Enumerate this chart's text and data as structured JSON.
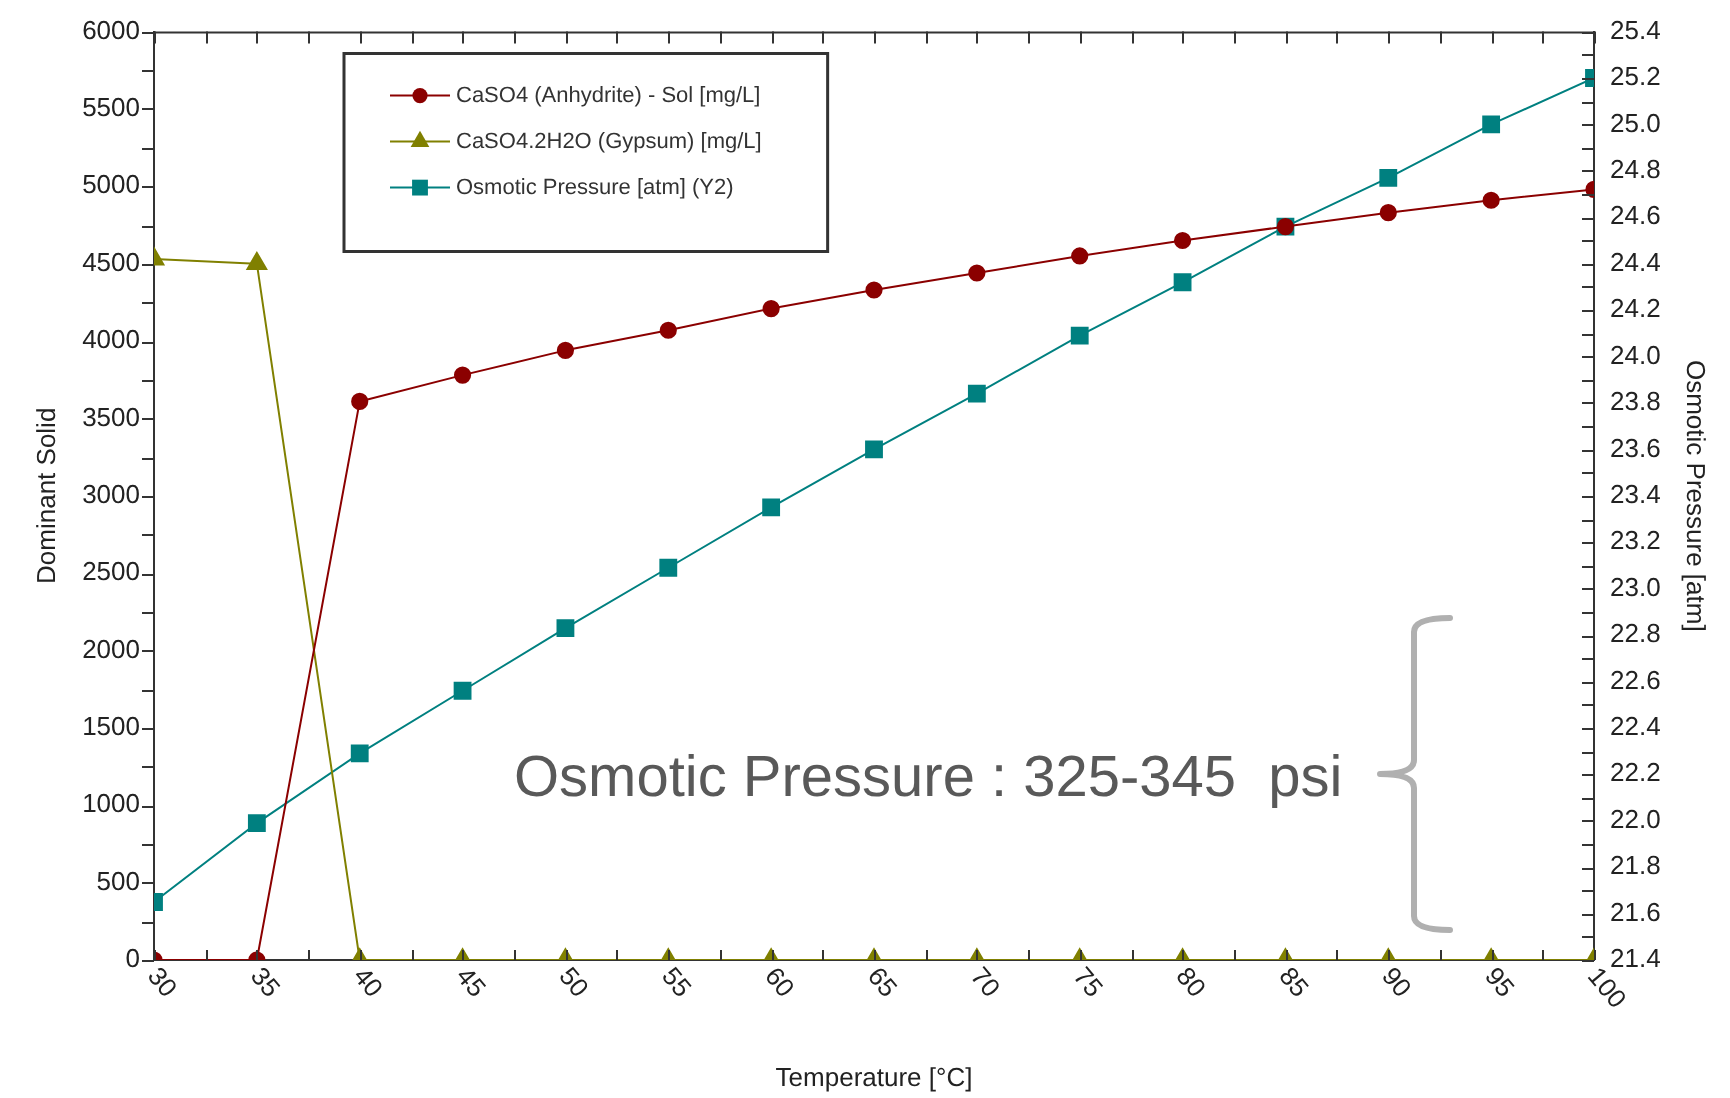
{
  "chart_data": {
    "type": "line",
    "xlabel": "Temperature [°C]",
    "ylabel": "Dominant Solid",
    "y2label": "Osmotic Pressure [atm]",
    "x": [
      30,
      35,
      40,
      45,
      50,
      55,
      60,
      65,
      70,
      75,
      80,
      85,
      90,
      95,
      100
    ],
    "series": [
      {
        "name": "CaSO4 (Anhydrite) - Sol [mg/L]",
        "color": "#8b0000",
        "marker": "circle",
        "values": [
          0,
          0,
          3610,
          3780,
          3940,
          4070,
          4210,
          4330,
          4440,
          4550,
          4650,
          4740,
          4830,
          4910,
          4980
        ]
      },
      {
        "name": "CaSO4.2H2O (Gypsum) [mg/L]",
        "color": "#808000",
        "marker": "triangle",
        "values": [
          4530,
          4500,
          0,
          0,
          0,
          0,
          0,
          0,
          0,
          0,
          0,
          0,
          0,
          0,
          0
        ]
      },
      {
        "name": "Osmotic Pressure [atm] (Y2)",
        "color": "#008080",
        "marker": "square",
        "axis": "y2",
        "values": [
          21.65,
          21.99,
          22.29,
          22.56,
          22.83,
          23.09,
          23.35,
          23.6,
          23.84,
          24.09,
          24.32,
          24.56,
          24.77,
          25.0,
          25.2
        ]
      }
    ],
    "xlim": [
      30,
      100
    ],
    "xticks": [
      30,
      {
        "value": 32.5,
        "label": null
      },
      35,
      {
        "value": 37.5,
        "label": null
      },
      40,
      {
        "value": 42.5,
        "label": null
      },
      45,
      {
        "value": 47.5,
        "label": null
      },
      50,
      {
        "value": 52.5,
        "label": null
      },
      55,
      {
        "value": 57.5,
        "label": null
      },
      60,
      {
        "value": 62.5,
        "label": null
      },
      65,
      {
        "value": 67.5,
        "label": null
      },
      70,
      {
        "value": 72.5,
        "label": null
      },
      75,
      {
        "value": 77.5,
        "label": null
      },
      80,
      {
        "value": 82.5,
        "label": null
      },
      85,
      {
        "value": 87.5,
        "label": null
      },
      90,
      {
        "value": 92.5,
        "label": null
      },
      95,
      {
        "value": 97.5,
        "label": null
      },
      100
    ],
    "ylim": [
      0,
      6000
    ],
    "yticks": [
      0,
      {
        "value": 250,
        "label": null
      },
      500,
      {
        "value": 750,
        "label": null
      },
      1000,
      {
        "value": 1250,
        "label": null
      },
      1500,
      {
        "value": 1750,
        "label": null
      },
      2000,
      {
        "value": 2250,
        "label": null
      },
      2500,
      {
        "value": 2750,
        "label": null
      },
      3000,
      {
        "value": 3250,
        "label": null
      },
      3500,
      {
        "value": 3750,
        "label": null
      },
      4000,
      {
        "value": 4250,
        "label": null
      },
      4500,
      {
        "value": 4750,
        "label": null
      },
      5000,
      {
        "value": 5250,
        "label": null
      },
      5500,
      {
        "value": 5750,
        "label": null
      },
      6000
    ],
    "y2lim": [
      21.4,
      25.4
    ],
    "y2ticks": [
      21.4,
      {
        "value": 21.5,
        "label": null
      },
      21.6,
      {
        "value": 21.7,
        "label": null
      },
      21.8,
      {
        "value": 21.9,
        "label": null
      },
      {
        "value": 22,
        "label": "22.0"
      },
      {
        "value": 22.1,
        "label": null
      },
      22.2,
      {
        "value": 22.3,
        "label": null
      },
      22.4,
      {
        "value": 22.5,
        "label": null
      },
      22.6,
      {
        "value": 22.7,
        "label": null
      },
      22.8,
      {
        "value": 22.9,
        "label": null
      },
      {
        "value": 23,
        "label": "23.0"
      },
      {
        "value": 23.1,
        "label": null
      },
      23.2,
      {
        "value": 23.3,
        "label": null
      },
      23.4,
      {
        "value": 23.5,
        "label": null
      },
      23.6,
      {
        "value": 23.7,
        "label": null
      },
      23.8,
      {
        "value": 23.9,
        "label": null
      },
      {
        "value": 24,
        "label": "24.0"
      },
      {
        "value": 24.1,
        "label": null
      },
      24.2,
      {
        "value": 24.3,
        "label": null
      },
      24.4,
      {
        "value": 24.5,
        "label": null
      },
      24.6,
      {
        "value": 24.7,
        "label": null
      },
      24.8,
      {
        "value": 24.9,
        "label": null
      },
      {
        "value": 25,
        "label": "25.0"
      },
      {
        "value": 25.1,
        "label": null
      },
      25.2,
      {
        "value": 25.3,
        "label": null
      },
      25.4
    ],
    "legend": "top left",
    "annotations": [
      "Osmotic Pressure : 325-345  psi"
    ]
  }
}
